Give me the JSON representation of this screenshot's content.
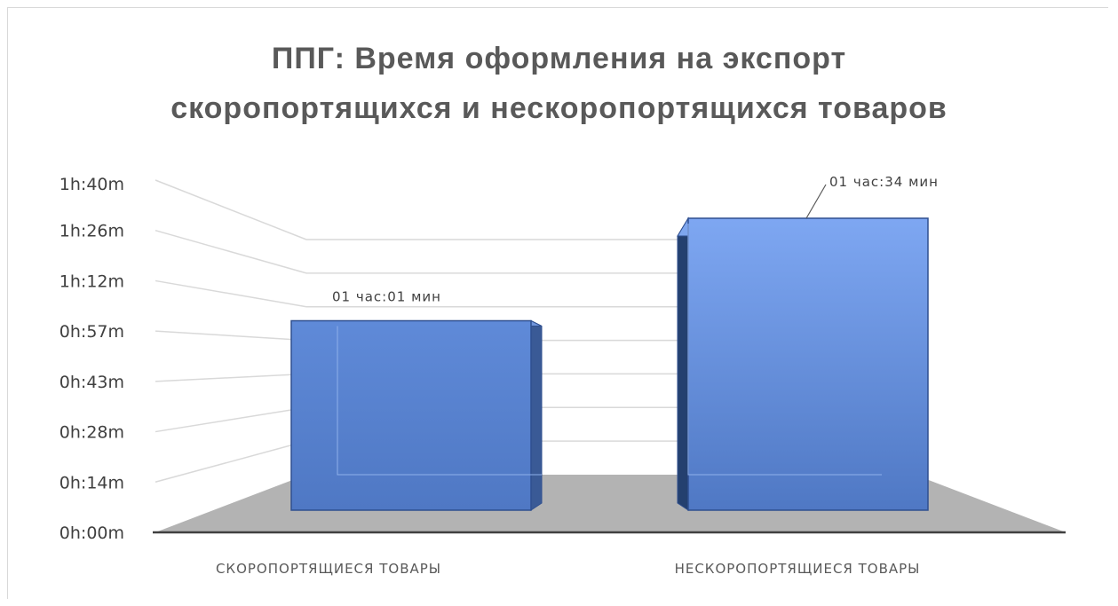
{
  "chart_data": {
    "type": "bar",
    "title": "ППГ: Время оформления на экспорт скоропортящихся и нескоропортящихся товаров",
    "title_lines": [
      "ППГ: Время оформления на экспорт",
      "скоропортящихся и нескоропортящихся товаров"
    ],
    "categories": [
      "СКОРОПОРТЯЩИЕСЯ ТОВАРЫ",
      "НЕСКОРОПОРТЯЩИЕСЯ ТОВАРЫ"
    ],
    "values": [
      61,
      94
    ],
    "value_unit": "minutes",
    "data_labels": [
      "01 час:01 мин",
      "01 час:34 мин"
    ],
    "y_ticks": [
      "0h:00m",
      "0h:14m",
      "0h:28m",
      "0h:43m",
      "0h:57m",
      "1h:12m",
      "1h:26m",
      "1h:40m"
    ],
    "ylim": [
      0,
      100
    ],
    "xlabel": "",
    "ylabel": "",
    "grid": true,
    "legend": "none",
    "bar_color": "#5b87d6",
    "bar_edge_color": "#2f4f8f",
    "floor_color": "#b3b3b3"
  }
}
